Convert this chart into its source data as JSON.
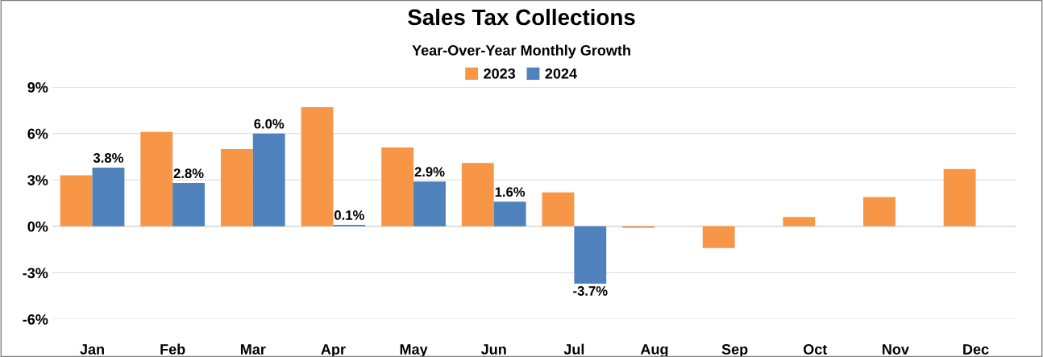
{
  "chart_data": {
    "type": "bar",
    "title": "Sales Tax Collections",
    "subtitle": "Year-Over-Year Monthly Growth",
    "categories": [
      "Jan",
      "Feb",
      "Mar",
      "Apr",
      "May",
      "Jun",
      "Jul",
      "Aug",
      "Sep",
      "Oct",
      "Nov",
      "Dec"
    ],
    "series": [
      {
        "name": "2023",
        "color": "#f79646",
        "values": [
          3.3,
          6.1,
          5.0,
          7.7,
          5.1,
          4.1,
          2.2,
          -0.1,
          -1.4,
          0.6,
          1.9,
          3.7
        ]
      },
      {
        "name": "2024",
        "color": "#4f81bd",
        "values": [
          3.8,
          2.8,
          6.0,
          0.1,
          2.9,
          1.6,
          -3.7,
          null,
          null,
          null,
          null,
          null
        ],
        "value_labels": [
          "3.8%",
          "2.8%",
          "6.0%",
          "0.1%",
          "2.9%",
          "1.6%",
          "-3.7%",
          null,
          null,
          null,
          null,
          null
        ]
      }
    ],
    "ylim": [
      -6,
      9
    ],
    "yticks": [
      {
        "value": -6,
        "label": "-6%"
      },
      {
        "value": -3,
        "label": "-3%"
      },
      {
        "value": 0,
        "label": "0%"
      },
      {
        "value": 3,
        "label": "3%"
      },
      {
        "value": 6,
        "label": "6%"
      },
      {
        "value": 9,
        "label": "9%"
      }
    ],
    "grid": "y",
    "legend": "top"
  }
}
